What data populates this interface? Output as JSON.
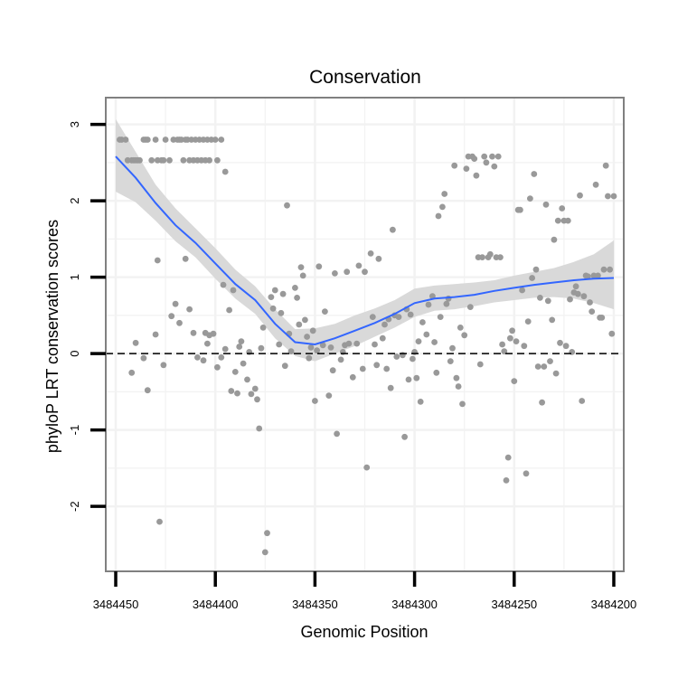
{
  "chart_data": {
    "type": "scatter",
    "title": "Conservation",
    "xlabel": "Genomic Position",
    "ylabel": "phyloP LRT conservation scores",
    "xlim": [
      3484455,
      3484195
    ],
    "ylim": [
      -2.85,
      3.35
    ],
    "x_ticks": [
      3484450,
      3484400,
      3484350,
      3484300,
      3484250,
      3484200
    ],
    "x_tick_labels": [
      "3484450",
      "3484400",
      "3484350",
      "3484300",
      "3484250",
      "3484200"
    ],
    "y_ticks": [
      -2,
      -1,
      0,
      1,
      2,
      3
    ],
    "y_tick_labels": [
      "-2",
      "-1",
      "0",
      "1",
      "2",
      "3"
    ],
    "reference_line": {
      "y": 0,
      "style": "dashed"
    },
    "colors": {
      "points": "#999999",
      "smooth": "#3366FF",
      "band": "#D9D9D9",
      "frame": "#808080",
      "grid": "#F2F2F2"
    },
    "points": [
      [
        3484448,
        2.8
      ],
      [
        3484447,
        2.8
      ],
      [
        3484445,
        2.8
      ],
      [
        3484444,
        2.53
      ],
      [
        3484442,
        2.53
      ],
      [
        3484441,
        2.53
      ],
      [
        3484440,
        2.53
      ],
      [
        3484439,
        2.53
      ],
      [
        3484438,
        2.53
      ],
      [
        3484436,
        2.8
      ],
      [
        3484435,
        2.8
      ],
      [
        3484434,
        2.8
      ],
      [
        3484432,
        2.53
      ],
      [
        3484430,
        2.8
      ],
      [
        3484429,
        2.53
      ],
      [
        3484427,
        2.53
      ],
      [
        3484426,
        2.53
      ],
      [
        3484425,
        2.8
      ],
      [
        3484423,
        2.53
      ],
      [
        3484421,
        2.8
      ],
      [
        3484419,
        2.8
      ],
      [
        3484418,
        2.8
      ],
      [
        3484417,
        2.8
      ],
      [
        3484416,
        2.53
      ],
      [
        3484415,
        2.8
      ],
      [
        3484414,
        2.8
      ],
      [
        3484413,
        2.53
      ],
      [
        3484412,
        2.8
      ],
      [
        3484411,
        2.53
      ],
      [
        3484410,
        2.8
      ],
      [
        3484409,
        2.53
      ],
      [
        3484408,
        2.8
      ],
      [
        3484407,
        2.53
      ],
      [
        3484406,
        2.8
      ],
      [
        3484405,
        2.53
      ],
      [
        3484404,
        2.8
      ],
      [
        3484403,
        2.53
      ],
      [
        3484402,
        2.8
      ],
      [
        3484400,
        2.8
      ],
      [
        3484399,
        2.53
      ],
      [
        3484397,
        2.8
      ],
      [
        3484395,
        2.38
      ],
      [
        3484442,
        -0.25
      ],
      [
        3484440,
        0.14
      ],
      [
        3484436,
        -0.06
      ],
      [
        3484434,
        -0.48
      ],
      [
        3484430,
        0.25
      ],
      [
        3484429,
        1.22
      ],
      [
        3484428,
        -2.2
      ],
      [
        3484426,
        -0.15
      ],
      [
        3484422,
        0.49
      ],
      [
        3484420,
        0.65
      ],
      [
        3484418,
        0.4
      ],
      [
        3484415,
        1.24
      ],
      [
        3484413,
        0.58
      ],
      [
        3484411,
        0.27
      ],
      [
        3484409,
        -0.05
      ],
      [
        3484406,
        -0.09
      ],
      [
        3484405,
        0.27
      ],
      [
        3484404,
        0.13
      ],
      [
        3484403,
        0.24
      ],
      [
        3484401,
        0.26
      ],
      [
        3484399,
        -0.18
      ],
      [
        3484397,
        -0.05
      ],
      [
        3484396,
        0.9
      ],
      [
        3484395,
        0.06
      ],
      [
        3484393,
        0.57
      ],
      [
        3484392,
        -0.49
      ],
      [
        3484391,
        0.83
      ],
      [
        3484390,
        -0.24
      ],
      [
        3484389,
        -0.52
      ],
      [
        3484388,
        0.09
      ],
      [
        3484387,
        0.16
      ],
      [
        3484386,
        -0.13
      ],
      [
        3484384,
        -0.34
      ],
      [
        3484383,
        0.02
      ],
      [
        3484382,
        -0.53
      ],
      [
        3484380,
        -0.46
      ],
      [
        3484379,
        -0.6
      ],
      [
        3484378,
        -0.98
      ],
      [
        3484377,
        0.07
      ],
      [
        3484376,
        0.34
      ],
      [
        3484375,
        -2.6
      ],
      [
        3484374,
        -2.35
      ],
      [
        3484372,
        0.74
      ],
      [
        3484371,
        0.59
      ],
      [
        3484370,
        0.83
      ],
      [
        3484368,
        0.12
      ],
      [
        3484367,
        0.53
      ],
      [
        3484366,
        0.78
      ],
      [
        3484365,
        -0.16
      ],
      [
        3484364,
        1.94
      ],
      [
        3484363,
        0.26
      ],
      [
        3484362,
        0.03
      ],
      [
        3484360,
        0.86
      ],
      [
        3484359,
        0.73
      ],
      [
        3484358,
        0.38
      ],
      [
        3484357,
        1.13
      ],
      [
        3484356,
        1.02
      ],
      [
        3484355,
        0.44
      ],
      [
        3484354,
        0.22
      ],
      [
        3484353,
        -0.06
      ],
      [
        3484352,
        0.08
      ],
      [
        3484351,
        0.3
      ],
      [
        3484350,
        -0.62
      ],
      [
        3484349,
        0.04
      ],
      [
        3484348,
        1.14
      ],
      [
        3484346,
        0.11
      ],
      [
        3484345,
        0.55
      ],
      [
        3484343,
        -0.55
      ],
      [
        3484342,
        0.08
      ],
      [
        3484341,
        -0.22
      ],
      [
        3484340,
        1.05
      ],
      [
        3484339,
        -1.05
      ],
      [
        3484337,
        -0.08
      ],
      [
        3484336,
        0.02
      ],
      [
        3484335,
        0.11
      ],
      [
        3484334,
        1.07
      ],
      [
        3484333,
        0.13
      ],
      [
        3484331,
        -0.31
      ],
      [
        3484329,
        0.13
      ],
      [
        3484328,
        1.15
      ],
      [
        3484326,
        -0.2
      ],
      [
        3484325,
        1.07
      ],
      [
        3484324,
        -1.49
      ],
      [
        3484322,
        1.31
      ],
      [
        3484321,
        0.48
      ],
      [
        3484320,
        0.12
      ],
      [
        3484319,
        -0.15
      ],
      [
        3484318,
        1.24
      ],
      [
        3484316,
        0.2
      ],
      [
        3484315,
        0.38
      ],
      [
        3484314,
        -0.2
      ],
      [
        3484313,
        0.45
      ],
      [
        3484312,
        -0.45
      ],
      [
        3484311,
        1.62
      ],
      [
        3484310,
        0.5
      ],
      [
        3484309,
        -0.04
      ],
      [
        3484308,
        0.48
      ],
      [
        3484306,
        -0.02
      ],
      [
        3484305,
        -1.09
      ],
      [
        3484304,
        0.58
      ],
      [
        3484303,
        -0.34
      ],
      [
        3484302,
        0.51
      ],
      [
        3484301,
        -0.07
      ],
      [
        3484300,
        0.02
      ],
      [
        3484299,
        -0.32
      ],
      [
        3484298,
        0.16
      ],
      [
        3484297,
        -0.63
      ],
      [
        3484296,
        0.41
      ],
      [
        3484294,
        0.25
      ],
      [
        3484293,
        0.64
      ],
      [
        3484291,
        0.75
      ],
      [
        3484290,
        0.15
      ],
      [
        3484289,
        -0.25
      ],
      [
        3484288,
        1.8
      ],
      [
        3484287,
        0.48
      ],
      [
        3484286,
        1.92
      ],
      [
        3484285,
        2.09
      ],
      [
        3484284,
        0.65
      ],
      [
        3484283,
        0.72
      ],
      [
        3484282,
        -0.1
      ],
      [
        3484281,
        0.07
      ],
      [
        3484280,
        2.46
      ],
      [
        3484279,
        -0.32
      ],
      [
        3484278,
        -0.43
      ],
      [
        3484277,
        0.34
      ],
      [
        3484276,
        -0.66
      ],
      [
        3484275,
        0.24
      ],
      [
        3484274,
        2.42
      ],
      [
        3484273,
        2.58
      ],
      [
        3484272,
        0.61
      ],
      [
        3484271,
        2.58
      ],
      [
        3484270,
        2.55
      ],
      [
        3484269,
        2.33
      ],
      [
        3484268,
        1.26
      ],
      [
        3484267,
        -0.14
      ],
      [
        3484266,
        1.26
      ],
      [
        3484265,
        2.58
      ],
      [
        3484264,
        2.5
      ],
      [
        3484263,
        1.26
      ],
      [
        3484262,
        1.3
      ],
      [
        3484261,
        2.58
      ],
      [
        3484260,
        2.45
      ],
      [
        3484259,
        1.26
      ],
      [
        3484258,
        2.58
      ],
      [
        3484257,
        1.26
      ],
      [
        3484256,
        0.12
      ],
      [
        3484255,
        0.03
      ],
      [
        3484254,
        -1.66
      ],
      [
        3484253,
        -1.36
      ],
      [
        3484252,
        0.2
      ],
      [
        3484251,
        0.3
      ],
      [
        3484250,
        -0.36
      ],
      [
        3484249,
        0.16
      ],
      [
        3484248,
        1.88
      ],
      [
        3484247,
        1.88
      ],
      [
        3484246,
        0.83
      ],
      [
        3484245,
        0.1
      ],
      [
        3484244,
        -1.57
      ],
      [
        3484243,
        0.42
      ],
      [
        3484242,
        2.03
      ],
      [
        3484241,
        0.99
      ],
      [
        3484240,
        2.35
      ],
      [
        3484239,
        1.1
      ],
      [
        3484238,
        -0.17
      ],
      [
        3484237,
        0.73
      ],
      [
        3484236,
        -0.64
      ],
      [
        3484235,
        -0.17
      ],
      [
        3484234,
        1.95
      ],
      [
        3484233,
        0.69
      ],
      [
        3484232,
        -0.1
      ],
      [
        3484231,
        0.44
      ],
      [
        3484230,
        1.49
      ],
      [
        3484229,
        -0.26
      ],
      [
        3484228,
        1.74
      ],
      [
        3484227,
        0.14
      ],
      [
        3484226,
        1.9
      ],
      [
        3484225,
        1.74
      ],
      [
        3484224,
        0.1
      ],
      [
        3484223,
        1.74
      ],
      [
        3484222,
        0.71
      ],
      [
        3484221,
        0.02
      ],
      [
        3484220,
        0.8
      ],
      [
        3484219,
        0.88
      ],
      [
        3484218,
        0.78
      ],
      [
        3484217,
        2.07
      ],
      [
        3484216,
        -0.62
      ],
      [
        3484215,
        0.75
      ],
      [
        3484214,
        1.02
      ],
      [
        3484213,
        1.01
      ],
      [
        3484212,
        0.67
      ],
      [
        3484211,
        0.55
      ],
      [
        3484210,
        1.02
      ],
      [
        3484209,
        2.21
      ],
      [
        3484208,
        1.02
      ],
      [
        3484207,
        0.47
      ],
      [
        3484206,
        0.47
      ],
      [
        3484205,
        1.1
      ],
      [
        3484204,
        2.46
      ],
      [
        3484203,
        2.06
      ],
      [
        3484202,
        1.1
      ],
      [
        3484201,
        0.26
      ],
      [
        3484200,
        2.06
      ]
    ],
    "smooth": {
      "x": [
        3484450,
        3484440,
        3484430,
        3484420,
        3484410,
        3484400,
        3484390,
        3484380,
        3484370,
        3484360,
        3484350,
        3484340,
        3484330,
        3484320,
        3484310,
        3484300,
        3484290,
        3484280,
        3484270,
        3484260,
        3484250,
        3484240,
        3484230,
        3484220,
        3484210,
        3484200
      ],
      "y": [
        2.58,
        2.3,
        1.97,
        1.68,
        1.45,
        1.18,
        0.91,
        0.7,
        0.39,
        0.15,
        0.12,
        0.2,
        0.3,
        0.4,
        0.52,
        0.66,
        0.72,
        0.74,
        0.77,
        0.82,
        0.86,
        0.9,
        0.93,
        0.96,
        0.98,
        0.99
      ],
      "lower": [
        2.12,
        1.98,
        1.74,
        1.47,
        1.26,
        0.98,
        0.72,
        0.52,
        0.2,
        -0.03,
        -0.1,
        0.0,
        0.1,
        0.22,
        0.34,
        0.48,
        0.56,
        0.58,
        0.62,
        0.67,
        0.7,
        0.73,
        0.74,
        0.72,
        0.66,
        0.58
      ],
      "upper": [
        3.07,
        2.64,
        2.21,
        1.9,
        1.64,
        1.38,
        1.1,
        0.88,
        0.58,
        0.32,
        0.33,
        0.39,
        0.5,
        0.59,
        0.7,
        0.85,
        0.89,
        0.91,
        0.93,
        0.96,
        1.02,
        1.07,
        1.12,
        1.2,
        1.3,
        1.48
      ]
    }
  }
}
